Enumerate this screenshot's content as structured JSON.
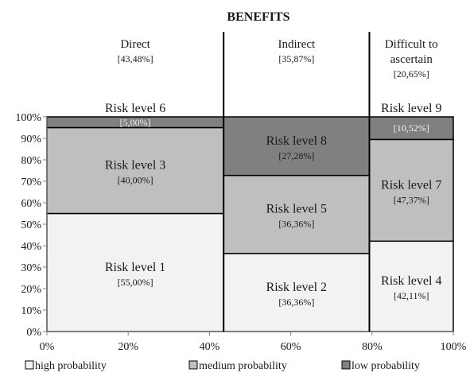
{
  "chart_data": {
    "type": "mosaic",
    "title": "BENEFITS",
    "columns": [
      {
        "label_lines": [
          "Direct"
        ],
        "share": 43.48,
        "share_label": "[43,48%]",
        "segments": [
          {
            "label": "Risk level 1",
            "value": 55.0,
            "value_label": "[55,00%]",
            "category": "high probability"
          },
          {
            "label": "Risk level 3",
            "value": 40.0,
            "value_label": "[40,00%]",
            "category": "medium probability"
          },
          {
            "label": "Risk level 6",
            "value": 5.0,
            "value_label": "[5,00%]",
            "category": "low probability"
          }
        ]
      },
      {
        "label_lines": [
          "Indirect"
        ],
        "share": 35.87,
        "share_label": "[35,87%]",
        "segments": [
          {
            "label": "Risk level 2",
            "value": 36.36,
            "value_label": "[36,36%]",
            "category": "high probability"
          },
          {
            "label": "Risk level 5",
            "value": 36.36,
            "value_label": "[36,36%]",
            "category": "medium probability"
          },
          {
            "label": "Risk level 8",
            "value": 27.28,
            "value_label": "[27,28%]",
            "category": "low probability"
          }
        ]
      },
      {
        "label_lines": [
          "Difficult to",
          "ascertain"
        ],
        "share": 20.65,
        "share_label": "[20,65%]",
        "segments": [
          {
            "label": "Risk level 4",
            "value": 42.11,
            "value_label": "[42,11%]",
            "category": "high probability"
          },
          {
            "label": "Risk level 7",
            "value": 47.37,
            "value_label": "[47,37%]",
            "category": "medium probability"
          },
          {
            "label": "Risk level 9",
            "value": 10.52,
            "value_label": "[10,52%]",
            "category": "low probability"
          }
        ]
      }
    ],
    "y_ticks": [
      "0%",
      "10%",
      "20%",
      "30%",
      "40%",
      "50%",
      "60%",
      "70%",
      "80%",
      "90%",
      "100%"
    ],
    "x_ticks": [
      "0%",
      "20%",
      "40%",
      "60%",
      "80%",
      "100%"
    ],
    "ylim": [
      0,
      100
    ],
    "xlim": [
      0,
      100
    ],
    "legend": [
      {
        "label": "high probability",
        "color": "#f2f2f2"
      },
      {
        "label": "medium probability",
        "color": "#bfbfbf"
      },
      {
        "label": "low probability",
        "color": "#808080"
      }
    ],
    "legend_position": "bottom"
  }
}
